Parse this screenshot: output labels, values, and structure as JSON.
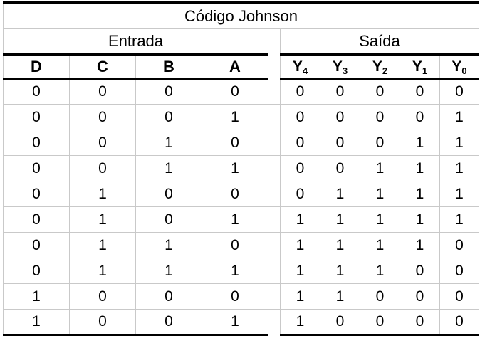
{
  "title": "Código Johnson",
  "groups": {
    "input": "Entrada",
    "output": "Saída"
  },
  "input_headers": [
    "D",
    "C",
    "B",
    "A"
  ],
  "output_headers": [
    {
      "base": "Y",
      "sub": "4"
    },
    {
      "base": "Y",
      "sub": "3"
    },
    {
      "base": "Y",
      "sub": "2"
    },
    {
      "base": "Y",
      "sub": "1"
    },
    {
      "base": "Y",
      "sub": "0"
    }
  ],
  "rows": [
    {
      "input": [
        "0",
        "0",
        "0",
        "0"
      ],
      "output": [
        "0",
        "0",
        "0",
        "0",
        "0"
      ]
    },
    {
      "input": [
        "0",
        "0",
        "0",
        "1"
      ],
      "output": [
        "0",
        "0",
        "0",
        "0",
        "1"
      ]
    },
    {
      "input": [
        "0",
        "0",
        "1",
        "0"
      ],
      "output": [
        "0",
        "0",
        "0",
        "1",
        "1"
      ]
    },
    {
      "input": [
        "0",
        "0",
        "1",
        "1"
      ],
      "output": [
        "0",
        "0",
        "1",
        "1",
        "1"
      ]
    },
    {
      "input": [
        "0",
        "1",
        "0",
        "0"
      ],
      "output": [
        "0",
        "1",
        "1",
        "1",
        "1"
      ]
    },
    {
      "input": [
        "0",
        "1",
        "0",
        "1"
      ],
      "output": [
        "1",
        "1",
        "1",
        "1",
        "1"
      ]
    },
    {
      "input": [
        "0",
        "1",
        "1",
        "0"
      ],
      "output": [
        "1",
        "1",
        "1",
        "1",
        "0"
      ]
    },
    {
      "input": [
        "0",
        "1",
        "1",
        "1"
      ],
      "output": [
        "1",
        "1",
        "1",
        "0",
        "0"
      ]
    },
    {
      "input": [
        "1",
        "0",
        "0",
        "0"
      ],
      "output": [
        "1",
        "1",
        "0",
        "0",
        "0"
      ]
    },
    {
      "input": [
        "1",
        "0",
        "0",
        "1"
      ],
      "output": [
        "1",
        "0",
        "0",
        "0",
        "0"
      ]
    }
  ],
  "colors": {
    "heavy_line": "#000000",
    "grid_line": "#c9c9c9",
    "text": "#000000",
    "background": "#ffffff"
  }
}
